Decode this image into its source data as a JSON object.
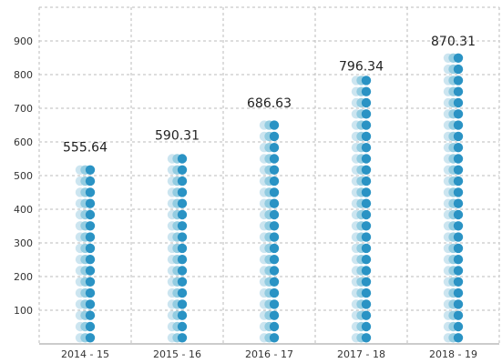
{
  "chart_data": {
    "type": "bar",
    "title": "",
    "xlabel": "",
    "ylabel": "",
    "categories": [
      "2014 - 15",
      "2015 - 16",
      "2016 - 17",
      "2017 - 18",
      "2018 - 19"
    ],
    "values": [
      555.64,
      590.31,
      686.63,
      796.34,
      870.31
    ],
    "data_labels": [
      "555.64",
      "590.31",
      "686.63",
      "796.34",
      "870.31"
    ],
    "ylim": [
      0,
      1000
    ],
    "yticks": [
      100,
      200,
      300,
      400,
      500,
      600,
      700,
      800,
      900
    ],
    "grid": true,
    "bar_style": "stacked-circle-icons",
    "colors": {
      "icon_light": "#c6e2ee",
      "icon_mid": "#8cc9df",
      "icon_dark": "#2a93c4",
      "grid": "#bbbbbb",
      "axis": "#999999",
      "text": "#333333"
    }
  }
}
